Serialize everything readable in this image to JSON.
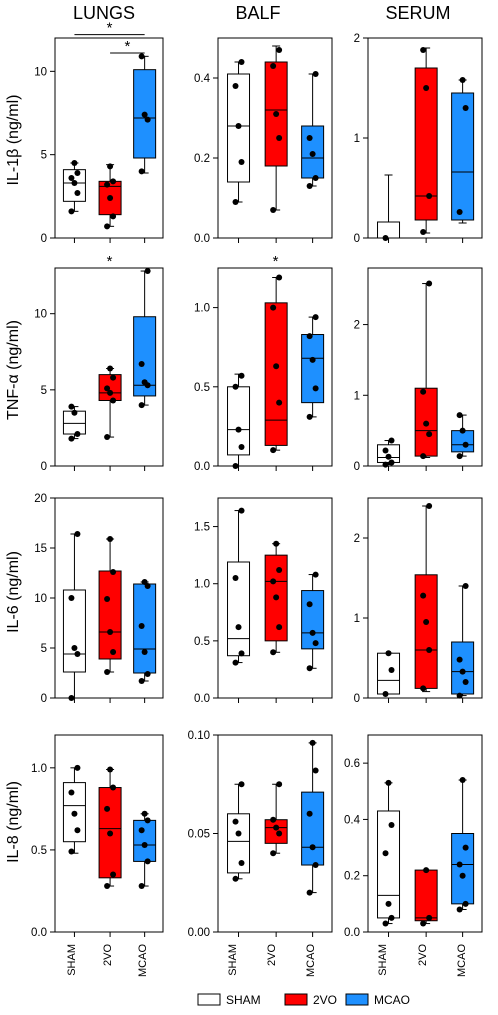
{
  "column_titles": [
    "LUNGS",
    "BALF",
    "SERUM"
  ],
  "row_ylabels": [
    "IL-1β (ng/ml)",
    "TNF-α (ng/ml)",
    "IL-6 (ng/ml)",
    "IL-8 (ng/ml)"
  ],
  "categories": [
    "SHAM",
    "2VO",
    "MCAO"
  ],
  "legend": [
    {
      "label": "SHAM",
      "color": "#ffffff"
    },
    {
      "label": "2VO",
      "color": "#ff0000"
    },
    {
      "label": "MCAO",
      "color": "#1e90ff"
    }
  ],
  "chart_data": [
    {
      "type": "box",
      "row": 0,
      "col": 0,
      "ylim": [
        0,
        12
      ],
      "yticks": [
        "0",
        "5",
        "10"
      ],
      "ytick_values": [
        0,
        5,
        10
      ],
      "boxes": [
        {
          "min": 1.6,
          "q1": 2.2,
          "median": 3.3,
          "q3": 4.1,
          "max": 4.5,
          "points": [
            1.6,
            2.7,
            3.3,
            3.6,
            3.9,
            4.5
          ]
        },
        {
          "min": 0.7,
          "q1": 1.4,
          "median": 3.1,
          "q3": 3.4,
          "max": 4.4,
          "points": [
            0.7,
            1.3,
            2.4,
            3.2,
            3.4,
            4.3
          ]
        },
        {
          "min": 3.9,
          "q1": 4.8,
          "median": 7.2,
          "q3": 10.1,
          "max": 10.9,
          "points": [
            4.0,
            7.1,
            7.4,
            10.9
          ]
        }
      ],
      "significance": [
        {
          "from": 0,
          "to": 2,
          "label": "*",
          "y": 12.2
        },
        {
          "from": 1,
          "to": 2,
          "label": "*",
          "y": 11.1
        }
      ]
    },
    {
      "type": "box",
      "row": 0,
      "col": 1,
      "ylim": [
        0,
        0.5
      ],
      "yticks": [
        "0.0",
        "0.2",
        "0.4"
      ],
      "ytick_values": [
        0,
        0.2,
        0.4
      ],
      "boxes": [
        {
          "min": 0.09,
          "q1": 0.14,
          "median": 0.28,
          "q3": 0.41,
          "max": 0.44,
          "points": [
            0.09,
            0.19,
            0.28,
            0.38,
            0.44
          ]
        },
        {
          "min": 0.07,
          "q1": 0.18,
          "median": 0.32,
          "q3": 0.44,
          "max": 0.48,
          "points": [
            0.07,
            0.25,
            0.31,
            0.43,
            0.47
          ]
        },
        {
          "min": 0.13,
          "q1": 0.15,
          "median": 0.2,
          "q3": 0.28,
          "max": 0.41,
          "points": [
            0.13,
            0.15,
            0.21,
            0.25,
            0.41
          ]
        }
      ],
      "significance": []
    },
    {
      "type": "box",
      "row": 0,
      "col": 2,
      "ylim": [
        0,
        2
      ],
      "yticks": [
        "0",
        "1",
        "2"
      ],
      "ytick_values": [
        0,
        1,
        2
      ],
      "boxes": [
        {
          "min": 0.0,
          "q1": 0.0,
          "median": 0.0,
          "q3": 0.16,
          "max": 0.63,
          "points": [
            0.0
          ]
        },
        {
          "min": 0.05,
          "q1": 0.18,
          "median": 0.42,
          "q3": 1.7,
          "max": 1.9,
          "points": [
            0.06,
            0.42,
            1.5,
            1.88
          ]
        },
        {
          "min": 0.15,
          "q1": 0.18,
          "median": 0.66,
          "q3": 1.45,
          "max": 1.58,
          "points": [
            0.26,
            1.3,
            1.58
          ]
        }
      ],
      "significance": []
    },
    {
      "type": "box",
      "row": 1,
      "col": 0,
      "ylim": [
        0,
        13
      ],
      "yticks": [
        "0",
        "5",
        "10"
      ],
      "ytick_values": [
        0,
        5,
        10
      ],
      "boxes": [
        {
          "min": 1.8,
          "q1": 2.1,
          "median": 2.8,
          "q3": 3.6,
          "max": 3.9,
          "points": [
            1.8,
            2.1,
            3.5,
            3.9
          ]
        },
        {
          "min": 1.9,
          "q1": 4.3,
          "median": 4.8,
          "q3": 6.0,
          "max": 6.4,
          "points": [
            1.9,
            4.3,
            4.8,
            5.1,
            5.8,
            6.4
          ]
        },
        {
          "min": 4.0,
          "q1": 4.6,
          "median": 5.3,
          "q3": 9.8,
          "max": 12.8,
          "points": [
            4.0,
            5.3,
            5.5,
            6.7,
            12.8
          ]
        }
      ],
      "significance": [
        {
          "from": 0,
          "to": 2,
          "label": "*",
          "y": 13.0
        }
      ]
    },
    {
      "type": "box",
      "row": 1,
      "col": 1,
      "ylim": [
        0,
        1.25
      ],
      "yticks": [
        "0.0",
        "0.5",
        "1.0"
      ],
      "ytick_values": [
        0,
        0.5,
        1.0
      ],
      "boxes": [
        {
          "min": 0.0,
          "q1": 0.07,
          "median": 0.23,
          "q3": 0.5,
          "max": 0.58,
          "points": [
            0.0,
            0.12,
            0.23,
            0.5,
            0.57
          ]
        },
        {
          "min": 0.1,
          "q1": 0.13,
          "median": 0.29,
          "q3": 1.03,
          "max": 1.19,
          "points": [
            0.1,
            0.4,
            0.63,
            1.0,
            1.19
          ]
        },
        {
          "min": 0.31,
          "q1": 0.4,
          "median": 0.68,
          "q3": 0.83,
          "max": 0.94,
          "points": [
            0.31,
            0.49,
            0.67,
            0.82,
            0.94
          ]
        }
      ],
      "significance": [
        {
          "from": 0,
          "to": 2,
          "label": "*",
          "y": 1.25
        }
      ]
    },
    {
      "type": "box",
      "row": 1,
      "col": 2,
      "ylim": [
        0,
        2.8
      ],
      "yticks": [
        "0",
        "1",
        "2"
      ],
      "ytick_values": [
        0,
        1,
        2
      ],
      "boxes": [
        {
          "min": 0.02,
          "q1": 0.05,
          "median": 0.12,
          "q3": 0.3,
          "max": 0.36,
          "points": [
            0.02,
            0.05,
            0.13,
            0.22,
            0.36
          ]
        },
        {
          "min": 0.12,
          "q1": 0.14,
          "median": 0.5,
          "q3": 1.1,
          "max": 2.58,
          "points": [
            0.14,
            0.45,
            0.6,
            1.05,
            2.58
          ]
        },
        {
          "min": 0.14,
          "q1": 0.2,
          "median": 0.3,
          "q3": 0.5,
          "max": 0.72,
          "points": [
            0.14,
            0.3,
            0.5,
            0.72
          ]
        }
      ],
      "significance": []
    },
    {
      "type": "box",
      "row": 2,
      "col": 0,
      "ylim": [
        0,
        20
      ],
      "yticks": [
        "0",
        "5",
        "10",
        "15",
        "20"
      ],
      "ytick_values": [
        0,
        5,
        10,
        15,
        20
      ],
      "boxes": [
        {
          "min": 0.0,
          "q1": 2.6,
          "median": 4.4,
          "q3": 10.8,
          "max": 16.4,
          "points": [
            0.0,
            4.4,
            5.0,
            10.0,
            16.4
          ]
        },
        {
          "min": 2.6,
          "q1": 3.9,
          "median": 6.6,
          "q3": 12.7,
          "max": 15.9,
          "points": [
            2.6,
            4.6,
            6.6,
            9.9,
            12.6,
            15.9
          ]
        },
        {
          "min": 1.7,
          "q1": 2.5,
          "median": 4.9,
          "q3": 11.4,
          "max": 11.6,
          "points": [
            1.7,
            2.4,
            4.6,
            7.2,
            11.2,
            11.6
          ]
        }
      ],
      "significance": []
    },
    {
      "type": "box",
      "row": 2,
      "col": 1,
      "ylim": [
        0,
        1.75
      ],
      "yticks": [
        "0.0",
        "0.5",
        "1.0",
        "1.5"
      ],
      "ytick_values": [
        0,
        0.5,
        1.0,
        1.5
      ],
      "boxes": [
        {
          "min": 0.31,
          "q1": 0.37,
          "median": 0.52,
          "q3": 1.19,
          "max": 1.64,
          "points": [
            0.31,
            0.39,
            0.62,
            1.05,
            1.64
          ]
        },
        {
          "min": 0.4,
          "q1": 0.5,
          "median": 1.02,
          "q3": 1.25,
          "max": 1.35,
          "points": [
            0.4,
            0.62,
            0.88,
            1.02,
            1.12,
            1.35
          ]
        },
        {
          "min": 0.26,
          "q1": 0.43,
          "median": 0.57,
          "q3": 0.94,
          "max": 1.08,
          "points": [
            0.26,
            0.48,
            0.57,
            0.82,
            1.08
          ]
        }
      ],
      "significance": []
    },
    {
      "type": "box",
      "row": 2,
      "col": 2,
      "ylim": [
        0,
        2.5
      ],
      "yticks": [
        "0",
        "1",
        "2"
      ],
      "ytick_values": [
        0,
        1,
        2
      ],
      "boxes": [
        {
          "min": 0.05,
          "q1": 0.05,
          "median": 0.22,
          "q3": 0.56,
          "max": 0.56,
          "points": [
            0.05,
            0.35,
            0.56
          ]
        },
        {
          "min": 0.08,
          "q1": 0.12,
          "median": 0.6,
          "q3": 1.54,
          "max": 2.4,
          "points": [
            0.12,
            0.6,
            0.95,
            1.28,
            2.4
          ]
        },
        {
          "min": 0.03,
          "q1": 0.05,
          "median": 0.33,
          "q3": 0.7,
          "max": 1.4,
          "points": [
            0.03,
            0.2,
            0.33,
            0.48,
            1.4
          ]
        }
      ],
      "significance": []
    },
    {
      "type": "box",
      "row": 3,
      "col": 0,
      "ylim": [
        0,
        1.2
      ],
      "yticks": [
        "0.0",
        "0.5",
        "1.0"
      ],
      "ytick_values": [
        0,
        0.5,
        1.0
      ],
      "boxes": [
        {
          "min": 0.48,
          "q1": 0.55,
          "median": 0.77,
          "q3": 0.91,
          "max": 1.0,
          "points": [
            0.49,
            0.62,
            0.72,
            0.85,
            1.0
          ]
        },
        {
          "min": 0.28,
          "q1": 0.33,
          "median": 0.63,
          "q3": 0.88,
          "max": 0.99,
          "points": [
            0.28,
            0.35,
            0.6,
            0.75,
            0.88,
            0.99
          ]
        },
        {
          "min": 0.28,
          "q1": 0.43,
          "median": 0.53,
          "q3": 0.68,
          "max": 0.72,
          "points": [
            0.28,
            0.43,
            0.53,
            0.62,
            0.68,
            0.72
          ]
        }
      ],
      "significance": []
    },
    {
      "type": "box",
      "row": 3,
      "col": 1,
      "ylim": [
        0,
        0.1
      ],
      "yticks": [
        "0.00",
        "0.05",
        "0.10"
      ],
      "ytick_values": [
        0,
        0.05,
        0.1
      ],
      "boxes": [
        {
          "min": 0.027,
          "q1": 0.03,
          "median": 0.046,
          "q3": 0.06,
          "max": 0.075,
          "points": [
            0.027,
            0.035,
            0.05,
            0.056,
            0.075
          ]
        },
        {
          "min": 0.04,
          "q1": 0.045,
          "median": 0.053,
          "q3": 0.057,
          "max": 0.075,
          "points": [
            0.04,
            0.05,
            0.053,
            0.057,
            0.075
          ]
        },
        {
          "min": 0.02,
          "q1": 0.034,
          "median": 0.043,
          "q3": 0.071,
          "max": 0.096,
          "points": [
            0.02,
            0.034,
            0.043,
            0.06,
            0.082,
            0.096
          ]
        }
      ],
      "significance": []
    },
    {
      "type": "box",
      "row": 3,
      "col": 2,
      "ylim": [
        0,
        0.7
      ],
      "yticks": [
        "0.0",
        "0.2",
        "0.4",
        "0.6"
      ],
      "ytick_values": [
        0,
        0.2,
        0.4,
        0.6
      ],
      "boxes": [
        {
          "min": 0.03,
          "q1": 0.05,
          "median": 0.13,
          "q3": 0.43,
          "max": 0.53,
          "points": [
            0.03,
            0.05,
            0.1,
            0.28,
            0.38,
            0.53
          ]
        },
        {
          "min": 0.03,
          "q1": 0.04,
          "median": 0.05,
          "q3": 0.22,
          "max": 0.22,
          "points": [
            0.03,
            0.05,
            0.22
          ]
        },
        {
          "min": 0.08,
          "q1": 0.1,
          "median": 0.24,
          "q3": 0.35,
          "max": 0.54,
          "points": [
            0.08,
            0.1,
            0.2,
            0.24,
            0.3,
            0.54
          ]
        }
      ],
      "significance": []
    }
  ]
}
